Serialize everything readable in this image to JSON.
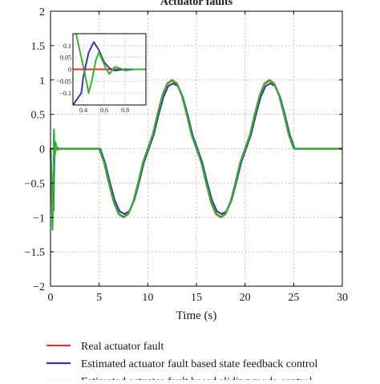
{
  "chart_data": {
    "type": "line",
    "title": "Actuator faults",
    "xlabel": "Time (s)",
    "ylabel": "",
    "xlim": [
      0,
      30
    ],
    "ylim": [
      -2,
      2
    ],
    "x_ticks": [
      "0",
      "5",
      "10",
      "15",
      "20",
      "25",
      "30"
    ],
    "y_ticks": [
      "2",
      "1.5",
      "1",
      "0.5",
      "0",
      "−0.5",
      "−1",
      "−1.5",
      "−2"
    ],
    "grid": true,
    "grid_style": "dotted",
    "legend_position": "bottom",
    "series": [
      {
        "name": "Real actuator fault",
        "color": "#e8312a",
        "points": [
          [
            0,
            0
          ],
          [
            5,
            0
          ],
          [
            5.5,
            -0.2
          ],
          [
            6,
            -0.5
          ],
          [
            6.5,
            -0.78
          ],
          [
            7,
            -0.95
          ],
          [
            7.5,
            -1.0
          ],
          [
            8,
            -0.95
          ],
          [
            8.5,
            -0.78
          ],
          [
            9,
            -0.5
          ],
          [
            9.5,
            -0.2
          ],
          [
            10,
            0
          ],
          [
            10.5,
            0.2
          ],
          [
            11,
            0.5
          ],
          [
            11.5,
            0.78
          ],
          [
            12,
            0.95
          ],
          [
            12.5,
            1.0
          ],
          [
            13,
            0.95
          ],
          [
            13.5,
            0.78
          ],
          [
            14,
            0.5
          ],
          [
            14.5,
            0.2
          ],
          [
            15,
            0
          ],
          [
            15.5,
            -0.2
          ],
          [
            16,
            -0.5
          ],
          [
            16.5,
            -0.78
          ],
          [
            17,
            -0.95
          ],
          [
            17.5,
            -1.0
          ],
          [
            18,
            -0.95
          ],
          [
            18.5,
            -0.78
          ],
          [
            19,
            -0.5
          ],
          [
            19.5,
            -0.2
          ],
          [
            20,
            0
          ],
          [
            20.5,
            0.2
          ],
          [
            21,
            0.5
          ],
          [
            21.5,
            0.78
          ],
          [
            22,
            0.95
          ],
          [
            22.5,
            1.0
          ],
          [
            23,
            0.95
          ],
          [
            23.5,
            0.78
          ],
          [
            24,
            0.5
          ],
          [
            24.5,
            0.2
          ],
          [
            25,
            0
          ],
          [
            30,
            0
          ]
        ]
      },
      {
        "name": "Estimated actuator fault based state feedback control",
        "color": "#3b3b9c",
        "points": [
          [
            0,
            0
          ],
          [
            0.15,
            -0.6
          ],
          [
            0.3,
            -0.9
          ],
          [
            0.4,
            -0.05
          ],
          [
            0.5,
            0.09
          ],
          [
            0.6,
            0.03
          ],
          [
            0.8,
            0
          ],
          [
            5.1,
            0
          ],
          [
            5.6,
            -0.2
          ],
          [
            6.1,
            -0.49
          ],
          [
            6.6,
            -0.75
          ],
          [
            7.1,
            -0.91
          ],
          [
            7.6,
            -0.95
          ],
          [
            8.1,
            -0.91
          ],
          [
            8.6,
            -0.75
          ],
          [
            9.1,
            -0.49
          ],
          [
            9.6,
            -0.2
          ],
          [
            10.1,
            0
          ],
          [
            10.6,
            0.2
          ],
          [
            11.1,
            0.49
          ],
          [
            11.6,
            0.75
          ],
          [
            12.1,
            0.91
          ],
          [
            12.6,
            0.95
          ],
          [
            13.1,
            0.91
          ],
          [
            13.6,
            0.75
          ],
          [
            14.1,
            0.49
          ],
          [
            14.6,
            0.2
          ],
          [
            15.1,
            0
          ],
          [
            15.6,
            -0.2
          ],
          [
            16.1,
            -0.49
          ],
          [
            16.6,
            -0.75
          ],
          [
            17.1,
            -0.91
          ],
          [
            17.6,
            -0.95
          ],
          [
            18.1,
            -0.91
          ],
          [
            18.6,
            -0.75
          ],
          [
            19.1,
            -0.49
          ],
          [
            19.6,
            -0.2
          ],
          [
            20.1,
            0
          ],
          [
            20.6,
            0.2
          ],
          [
            21.1,
            0.49
          ],
          [
            21.6,
            0.75
          ],
          [
            22.1,
            0.91
          ],
          [
            22.6,
            0.95
          ],
          [
            23.1,
            0.91
          ],
          [
            23.6,
            0.75
          ],
          [
            24.1,
            0.49
          ],
          [
            24.6,
            0.2
          ],
          [
            25.1,
            0
          ],
          [
            30,
            0
          ]
        ]
      },
      {
        "name": "Estimated actuator fault based sliding mode control",
        "color": "#3aae3c",
        "points": [
          [
            0,
            0
          ],
          [
            0.1,
            -0.4
          ],
          [
            0.2,
            -1.18
          ],
          [
            0.3,
            -0.5
          ],
          [
            0.35,
            0.28
          ],
          [
            0.45,
            -0.1
          ],
          [
            0.55,
            0.07
          ],
          [
            0.7,
            -0.02
          ],
          [
            0.9,
            0
          ],
          [
            5,
            0
          ],
          [
            5.5,
            -0.2
          ],
          [
            6,
            -0.5
          ],
          [
            6.5,
            -0.77
          ],
          [
            7,
            -0.94
          ],
          [
            7.5,
            -0.99
          ],
          [
            8,
            -0.94
          ],
          [
            8.5,
            -0.77
          ],
          [
            9,
            -0.5
          ],
          [
            9.5,
            -0.2
          ],
          [
            10,
            0
          ],
          [
            10.5,
            0.2
          ],
          [
            11,
            0.5
          ],
          [
            11.5,
            0.77
          ],
          [
            12,
            0.94
          ],
          [
            12.5,
            0.99
          ],
          [
            13,
            0.94
          ],
          [
            13.5,
            0.77
          ],
          [
            14,
            0.5
          ],
          [
            14.5,
            0.2
          ],
          [
            15,
            0
          ],
          [
            15.5,
            -0.2
          ],
          [
            16,
            -0.5
          ],
          [
            16.5,
            -0.77
          ],
          [
            17,
            -0.94
          ],
          [
            17.5,
            -0.99
          ],
          [
            18,
            -0.94
          ],
          [
            18.5,
            -0.77
          ],
          [
            19,
            -0.5
          ],
          [
            19.5,
            -0.2
          ],
          [
            20,
            0
          ],
          [
            20.5,
            0.2
          ],
          [
            21,
            0.5
          ],
          [
            21.5,
            0.77
          ],
          [
            22,
            0.94
          ],
          [
            22.5,
            0.99
          ],
          [
            23,
            0.94
          ],
          [
            23.5,
            0.77
          ],
          [
            24,
            0.5
          ],
          [
            24.5,
            0.2
          ],
          [
            25,
            0
          ],
          [
            30,
            0
          ]
        ]
      }
    ],
    "inset": {
      "xlim": [
        0.3,
        1.0
      ],
      "ylim": [
        -0.15,
        0.15
      ],
      "x_ticks": [
        "0.4",
        "0.6",
        "0.8"
      ],
      "y_ticks": [
        "0.1",
        "0.05",
        "0",
        "−0.05",
        "−0.1"
      ],
      "series": [
        {
          "name": "Real actuator fault",
          "color": "#e8312a",
          "points": [
            [
              0.3,
              0
            ],
            [
              1.0,
              0
            ]
          ]
        },
        {
          "name": "Estimated actuator fault based state feedback control",
          "color": "#3b3b9c",
          "points": [
            [
              0.3,
              -0.15
            ],
            [
              0.38,
              -0.1
            ],
            [
              0.4,
              -0.03
            ],
            [
              0.45,
              0.07
            ],
            [
              0.5,
              0.115
            ],
            [
              0.55,
              0.08
            ],
            [
              0.6,
              0.03
            ],
            [
              0.65,
              0.005
            ],
            [
              0.7,
              -0.005
            ],
            [
              0.8,
              0
            ],
            [
              1.0,
              0
            ]
          ]
        },
        {
          "name": "Estimated actuator fault based sliding mode control",
          "color": "#3aae3c",
          "points": [
            [
              0.33,
              0.15
            ],
            [
              0.38,
              0.05
            ],
            [
              0.42,
              -0.03
            ],
            [
              0.45,
              -0.1
            ],
            [
              0.48,
              -0.05
            ],
            [
              0.52,
              0.04
            ],
            [
              0.55,
              0.07
            ],
            [
              0.58,
              0.04
            ],
            [
              0.62,
              0.0
            ],
            [
              0.65,
              -0.02
            ],
            [
              0.7,
              0.01
            ],
            [
              0.75,
              0.005
            ],
            [
              0.8,
              -0.005
            ],
            [
              0.9,
              0
            ],
            [
              1.0,
              0
            ]
          ]
        }
      ]
    }
  }
}
